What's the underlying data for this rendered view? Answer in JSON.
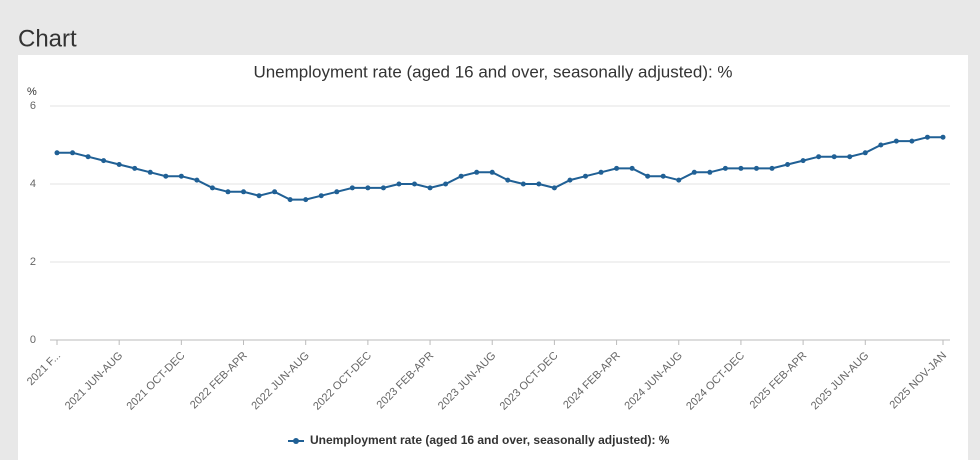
{
  "header": {
    "title": "Chart"
  },
  "chart_data": {
    "type": "line",
    "title": "Unemployment rate (aged 16 and over, seasonally adjusted): %",
    "ylabel": "%",
    "categories": [
      "2021 F...",
      null,
      null,
      null,
      "2021 JUN-AUG",
      null,
      null,
      null,
      "2021 OCT-DEC",
      null,
      null,
      null,
      "2022 FEB-APR",
      null,
      null,
      null,
      "2022 JUN-AUG",
      null,
      null,
      null,
      "2022 OCT-DEC",
      null,
      null,
      null,
      "2023 FEB-APR",
      null,
      null,
      null,
      "2023 JUN-AUG",
      null,
      null,
      null,
      "2023 OCT-DEC",
      null,
      null,
      null,
      "2024 FEB-APR",
      null,
      null,
      null,
      "2024 JUN-AUG",
      null,
      null,
      null,
      "2024 OCT-DEC",
      null,
      null,
      null,
      "2025 FEB-APR",
      null,
      null,
      null,
      "2025 JUN-AUG",
      null,
      null,
      null,
      null,
      "2025 NOV-JAN"
    ],
    "series": [
      {
        "name": "Unemployment rate (aged 16 and over, seasonally adjusted): %",
        "color": "#206095",
        "values": [
          4.8,
          4.8,
          4.7,
          4.6,
          4.5,
          4.4,
          4.3,
          4.2,
          4.2,
          4.1,
          3.9,
          3.8,
          3.8,
          3.7,
          3.8,
          3.6,
          3.6,
          3.7,
          3.8,
          3.9,
          3.9,
          3.9,
          4.0,
          4.0,
          3.9,
          4.0,
          4.2,
          4.3,
          4.3,
          4.1,
          4.0,
          4.0,
          3.9,
          4.1,
          4.2,
          4.3,
          4.4,
          4.4,
          4.2,
          4.2,
          4.1,
          4.3,
          4.3,
          4.4,
          4.4,
          4.4,
          4.4,
          4.5,
          4.6,
          4.7,
          4.7,
          4.7,
          4.8,
          5.0,
          5.1,
          5.1,
          5.2,
          5.2
        ]
      }
    ],
    "ylim": [
      0,
      6
    ],
    "yticks": [
      0,
      2,
      4,
      6
    ],
    "grid": true,
    "legend": "bottom"
  }
}
